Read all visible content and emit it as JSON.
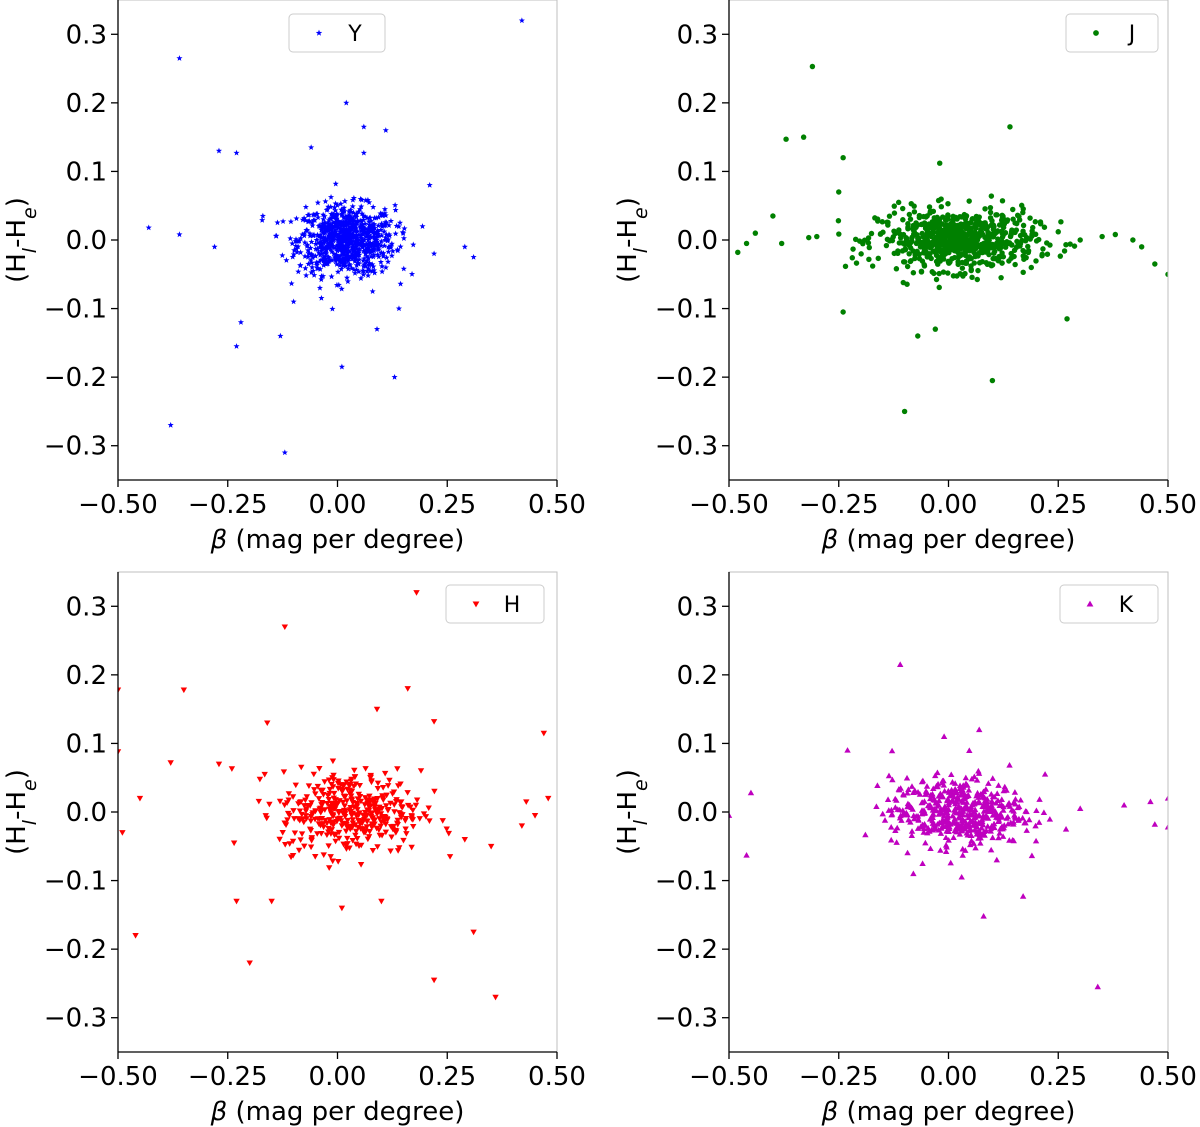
{
  "chart_data": [
    {
      "type": "scatter",
      "panel": "top-left",
      "band": "Y",
      "legend": "Y",
      "legend_position": "top-center",
      "marker": "star",
      "color": "#0000ff",
      "xlabel": "β (mag per degree)",
      "ylabel": "(H_l-H_e)",
      "xlim": [
        -0.5,
        0.5
      ],
      "ylim": [
        -0.35,
        0.35
      ],
      "xticks": [
        "−0.50",
        "−0.25",
        "0.00",
        "0.25",
        "0.50"
      ],
      "yticks": [
        "−0.3",
        "−0.2",
        "−0.1",
        "0.0",
        "0.1",
        "0.2",
        "0.3"
      ],
      "points": [
        [
          0.42,
          0.32
        ],
        [
          -0.36,
          0.265
        ],
        [
          0.02,
          0.2
        ],
        [
          0.06,
          0.165
        ],
        [
          0.11,
          0.16
        ],
        [
          -0.06,
          0.135
        ],
        [
          -0.27,
          0.13
        ],
        [
          -0.23,
          0.127
        ],
        [
          0.06,
          0.127
        ],
        [
          0.21,
          0.08
        ],
        [
          -0.17,
          0.035
        ],
        [
          -0.43,
          0.018
        ],
        [
          -0.36,
          0.008
        ],
        [
          -0.28,
          -0.01
        ],
        [
          0.29,
          -0.01
        ],
        [
          0.31,
          -0.025
        ],
        [
          0.22,
          -0.02
        ],
        [
          -0.22,
          -0.12
        ],
        [
          -0.13,
          -0.14
        ],
        [
          0.09,
          -0.13
        ],
        [
          -0.23,
          -0.155
        ],
        [
          0.01,
          -0.185
        ],
        [
          0.13,
          -0.2
        ],
        [
          -0.38,
          -0.27
        ],
        [
          -0.12,
          -0.31
        ],
        [
          -0.1,
          -0.09
        ],
        [
          0.14,
          -0.1
        ],
        [
          -0.04,
          -0.07
        ],
        [
          0.08,
          -0.075
        ]
      ],
      "cluster": {
        "center": [
          0.02,
          0.0
        ],
        "spread": [
          0.055,
          0.025
        ],
        "count": 820
      }
    },
    {
      "type": "scatter",
      "panel": "top-right",
      "band": "J",
      "legend": "J",
      "legend_position": "top-right",
      "marker": "circle",
      "color": "#008000",
      "xlabel": "β (mag per degree)",
      "ylabel": "(H_l-H_e)",
      "xlim": [
        -0.5,
        0.5
      ],
      "ylim": [
        -0.35,
        0.35
      ],
      "xticks": [
        "−0.50",
        "−0.25",
        "0.00",
        "0.25",
        "0.50"
      ],
      "yticks": [
        "−0.3",
        "−0.2",
        "−0.1",
        "0.0",
        "0.1",
        "0.2",
        "0.3"
      ],
      "points": [
        [
          -0.31,
          0.253
        ],
        [
          0.14,
          0.165
        ],
        [
          -0.37,
          0.147
        ],
        [
          -0.33,
          0.15
        ],
        [
          -0.24,
          0.12
        ],
        [
          -0.02,
          0.112
        ],
        [
          -0.25,
          0.07
        ],
        [
          -0.4,
          0.035
        ],
        [
          -0.44,
          0.01
        ],
        [
          -0.46,
          -0.005
        ],
        [
          -0.48,
          -0.018
        ],
        [
          -0.38,
          -0.005
        ],
        [
          0.42,
          0.0
        ],
        [
          0.44,
          -0.01
        ],
        [
          0.47,
          -0.035
        ],
        [
          0.5,
          -0.05
        ],
        [
          0.38,
          0.008
        ],
        [
          0.35,
          0.005
        ],
        [
          -0.24,
          -0.105
        ],
        [
          0.27,
          -0.115
        ],
        [
          -0.07,
          -0.14
        ],
        [
          -0.03,
          -0.13
        ],
        [
          0.1,
          -0.205
        ],
        [
          -0.1,
          -0.25
        ],
        [
          -0.3,
          0.005
        ],
        [
          0.3,
          0.0
        ],
        [
          0.25,
          0.012
        ]
      ],
      "cluster": {
        "center": [
          0.02,
          0.0
        ],
        "spread": [
          0.09,
          0.022
        ],
        "count": 700
      }
    },
    {
      "type": "scatter",
      "panel": "bottom-left",
      "band": "H",
      "legend": "H",
      "legend_position": "top-right",
      "marker": "triangle-down",
      "color": "#ff0000",
      "xlabel": "β (mag per degree)",
      "ylabel": "(H_l-H_e)",
      "xlim": [
        -0.5,
        0.5
      ],
      "ylim": [
        -0.35,
        0.35
      ],
      "xticks": [
        "−0.50",
        "−0.25",
        "0.00",
        "0.25",
        "0.50"
      ],
      "yticks": [
        "−0.3",
        "−0.2",
        "−0.1",
        "0.0",
        "0.1",
        "0.2",
        "0.3"
      ],
      "points": [
        [
          0.18,
          0.32
        ],
        [
          -0.12,
          0.27
        ],
        [
          -0.35,
          0.178
        ],
        [
          -0.5,
          0.178
        ],
        [
          0.16,
          0.18
        ],
        [
          -0.16,
          0.13
        ],
        [
          0.22,
          0.132
        ],
        [
          0.47,
          0.115
        ],
        [
          0.09,
          0.15
        ],
        [
          -0.5,
          0.088
        ],
        [
          -0.38,
          0.072
        ],
        [
          -0.27,
          0.07
        ],
        [
          -0.45,
          0.02
        ],
        [
          -0.49,
          -0.03
        ],
        [
          0.48,
          0.02
        ],
        [
          0.45,
          -0.005
        ],
        [
          0.43,
          0.015
        ],
        [
          -0.23,
          -0.13
        ],
        [
          -0.15,
          -0.13
        ],
        [
          0.01,
          -0.14
        ],
        [
          0.1,
          -0.13
        ],
        [
          -0.46,
          -0.18
        ],
        [
          0.31,
          -0.175
        ],
        [
          -0.2,
          -0.22
        ],
        [
          0.22,
          -0.245
        ],
        [
          0.36,
          -0.27
        ],
        [
          0.35,
          -0.05
        ],
        [
          0.29,
          -0.04
        ],
        [
          0.42,
          -0.02
        ]
      ],
      "cluster": {
        "center": [
          0.03,
          0.0
        ],
        "spread": [
          0.08,
          0.03
        ],
        "count": 420
      }
    },
    {
      "type": "scatter",
      "panel": "bottom-right",
      "band": "K",
      "legend": "K",
      "legend_position": "top-right",
      "marker": "triangle-up",
      "color": "#bf00bf",
      "xlabel": "β (mag per degree)",
      "ylabel": "(H_l-H_e)",
      "xlim": [
        -0.5,
        0.5
      ],
      "ylim": [
        -0.35,
        0.35
      ],
      "xticks": [
        "−0.50",
        "−0.25",
        "0.00",
        "0.25",
        "0.50"
      ],
      "yticks": [
        "−0.3",
        "−0.2",
        "−0.1",
        "0.0",
        "0.1",
        "0.2",
        "0.3"
      ],
      "points": [
        [
          -0.11,
          0.215
        ],
        [
          -0.01,
          0.11
        ],
        [
          0.07,
          0.12
        ],
        [
          -0.23,
          0.09
        ],
        [
          0.22,
          0.055
        ],
        [
          -0.45,
          0.028
        ],
        [
          -0.46,
          -0.063
        ],
        [
          -0.5,
          -0.005
        ],
        [
          0.46,
          0.015
        ],
        [
          0.5,
          0.02
        ],
        [
          0.5,
          -0.022
        ],
        [
          0.47,
          -0.018
        ],
        [
          0.08,
          -0.152
        ],
        [
          0.17,
          -0.123
        ],
        [
          0.34,
          -0.255
        ],
        [
          0.03,
          -0.095
        ],
        [
          -0.08,
          -0.09
        ],
        [
          0.11,
          -0.07
        ],
        [
          0.3,
          0.005
        ],
        [
          0.4,
          0.01
        ]
      ],
      "cluster": {
        "center": [
          0.02,
          0.0
        ],
        "spread": [
          0.075,
          0.025
        ],
        "count": 500
      }
    }
  ]
}
